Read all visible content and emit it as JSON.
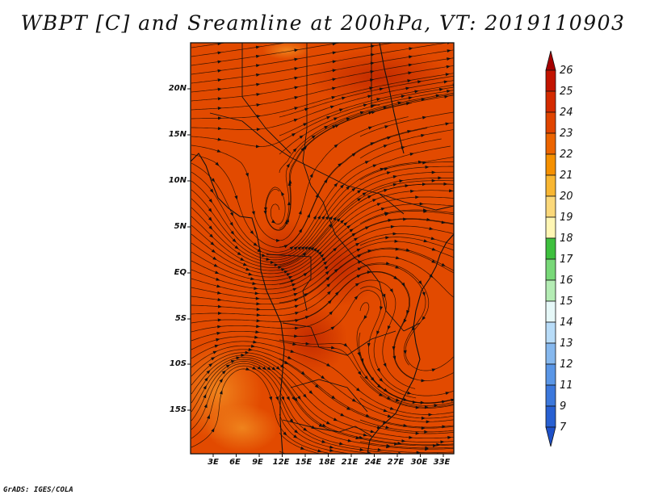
{
  "title": "WBPT [C] and Sreamline at 200hPa, VT: 2019110903",
  "footer": "GrADS: IGES/COLA",
  "map": {
    "lat_labels": [
      "20N",
      "15N",
      "10N",
      "5N",
      "EQ",
      "5S",
      "10S",
      "15S"
    ],
    "lon_labels": [
      "3E",
      "6E",
      "9E",
      "12E",
      "15E",
      "18E",
      "21E",
      "24E",
      "27E",
      "30E",
      "33E"
    ]
  },
  "colorbar": {
    "levels": [
      "26",
      "25",
      "24",
      "23",
      "22",
      "21",
      "20",
      "19",
      "18",
      "17",
      "16",
      "15",
      "14",
      "13",
      "12",
      "11",
      "9",
      "7"
    ],
    "colors": [
      "#a50000",
      "#c21400",
      "#d42a00",
      "#e04400",
      "#ec6400",
      "#f59000",
      "#f8b632",
      "#fbd87a",
      "#fff6b4",
      "#3ec03e",
      "#78d878",
      "#b4ecb4",
      "#e6f8f8",
      "#b8dcf8",
      "#86b8ee",
      "#5a96e6",
      "#3c78dc",
      "#2860d2",
      "#1e50c8"
    ]
  },
  "field_colors": {
    "base": "#e24a00",
    "dark": "#c72e00",
    "light": "#ec6a14",
    "lighter": "#f0841e"
  }
}
